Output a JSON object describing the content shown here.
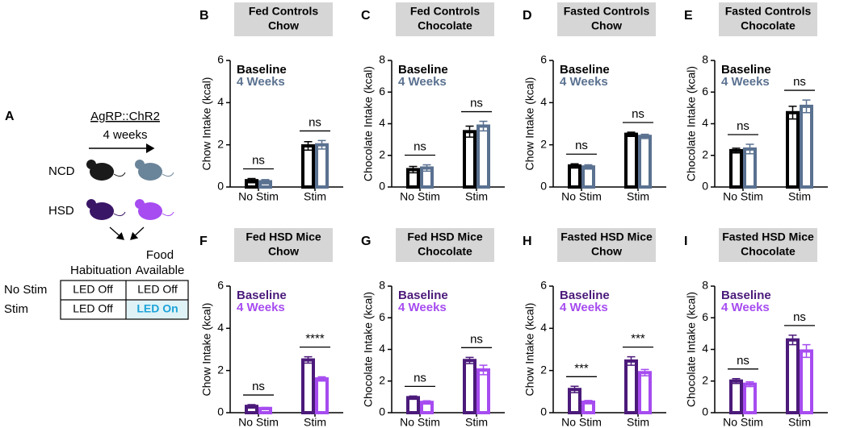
{
  "panel_a": {
    "label": "A",
    "strain": "AgRP::ChR2",
    "duration": "4 weeks",
    "groups": [
      "NCD",
      "HSD"
    ],
    "columns": [
      [
        "Habituation"
      ],
      [
        "Food",
        "Available"
      ]
    ],
    "rows": [
      {
        "label": "No Stim",
        "cells": [
          "LED Off",
          "LED Off"
        ]
      },
      {
        "label": "Stim",
        "cells": [
          "LED Off",
          "LED On"
        ]
      }
    ]
  },
  "chart_data": [
    {
      "type": "bar",
      "panel": "B",
      "title": [
        "Fed Controls",
        "Chow"
      ],
      "ylabel": "Chow Intake (kcal)",
      "categories": [
        "No Stim",
        "Stim"
      ],
      "ylim": [
        0,
        6
      ],
      "yticks": [
        0,
        2,
        4,
        6
      ],
      "series": [
        {
          "name": "Baseline",
          "color": "#000000",
          "values": [
            0.3,
            1.95
          ],
          "errors": [
            0.1,
            0.2
          ]
        },
        {
          "name": "4 Weeks",
          "color": "#5a7190",
          "values": [
            0.25,
            2.0
          ],
          "errors": [
            0.1,
            0.2
          ]
        }
      ],
      "annotations": [
        "ns",
        "ns"
      ]
    },
    {
      "type": "bar",
      "panel": "C",
      "title": [
        "Fed Controls",
        "Chocolate"
      ],
      "ylabel": "Chocolate Intake (kcal)",
      "categories": [
        "No Stim",
        "Stim"
      ],
      "ylim": [
        0,
        8
      ],
      "yticks": [
        0,
        2,
        4,
        6,
        8
      ],
      "series": [
        {
          "name": "Baseline",
          "color": "#000000",
          "values": [
            1.1,
            3.5
          ],
          "errors": [
            0.2,
            0.35
          ]
        },
        {
          "name": "4 Weeks",
          "color": "#5a7190",
          "values": [
            1.2,
            3.85
          ],
          "errors": [
            0.2,
            0.3
          ]
        }
      ],
      "annotations": [
        "ns",
        "ns"
      ]
    },
    {
      "type": "bar",
      "panel": "D",
      "title": [
        "Fasted Controls",
        "Chow"
      ],
      "ylabel": "Chow Intake (kcal)",
      "categories": [
        "No Stim",
        "Stim"
      ],
      "ylim": [
        0,
        6
      ],
      "yticks": [
        0,
        2,
        4,
        6
      ],
      "series": [
        {
          "name": "Baseline",
          "color": "#000000",
          "values": [
            1.0,
            2.5
          ],
          "errors": [
            0.1,
            0.1
          ]
        },
        {
          "name": "4 Weeks",
          "color": "#5a7190",
          "values": [
            0.95,
            2.4
          ],
          "errors": [
            0.1,
            0.1
          ]
        }
      ],
      "annotations": [
        "ns",
        "ns"
      ]
    },
    {
      "type": "bar",
      "panel": "E",
      "title": [
        "Fasted Controls",
        "Chocolate"
      ],
      "ylabel": "Chocolate Intake (kcal)",
      "categories": [
        "No Stim",
        "Stim"
      ],
      "ylim": [
        0,
        8
      ],
      "yticks": [
        0,
        2,
        4,
        6,
        8
      ],
      "series": [
        {
          "name": "Baseline",
          "color": "#000000",
          "values": [
            2.3,
            4.7
          ],
          "errors": [
            0.15,
            0.4
          ]
        },
        {
          "name": "4 Weeks",
          "color": "#5a7190",
          "values": [
            2.4,
            5.1
          ],
          "errors": [
            0.3,
            0.4
          ]
        }
      ],
      "annotations": [
        "ns",
        "ns"
      ]
    },
    {
      "type": "bar",
      "panel": "F",
      "title": [
        "Fed HSD Mice",
        "Chow"
      ],
      "ylabel": "Chow Intake (kcal)",
      "categories": [
        "No Stim",
        "Stim"
      ],
      "ylim": [
        0,
        6
      ],
      "yticks": [
        0,
        2,
        4,
        6
      ],
      "series": [
        {
          "name": "Baseline",
          "color": "#4b1a7a",
          "values": [
            0.3,
            2.5
          ],
          "errors": [
            0.08,
            0.15
          ]
        },
        {
          "name": "4 Weeks",
          "color": "#a64cf0",
          "values": [
            0.2,
            1.6
          ],
          "errors": [
            0.05,
            0.1
          ]
        }
      ],
      "annotations": [
        "ns",
        "****"
      ]
    },
    {
      "type": "bar",
      "panel": "G",
      "title": [
        "Fed HSD Mice",
        "Chocolate"
      ],
      "ylabel": "Chocolate Intake (kcal)",
      "categories": [
        "No Stim",
        "Stim"
      ],
      "ylim": [
        0,
        8
      ],
      "yticks": [
        0,
        2,
        4,
        6,
        8
      ],
      "series": [
        {
          "name": "Baseline",
          "color": "#4b1a7a",
          "values": [
            0.95,
            3.3
          ],
          "errors": [
            0.1,
            0.2
          ]
        },
        {
          "name": "4 Weeks",
          "color": "#a64cf0",
          "values": [
            0.65,
            2.7
          ],
          "errors": [
            0.1,
            0.3
          ]
        }
      ],
      "annotations": [
        "ns",
        "ns"
      ]
    },
    {
      "type": "bar",
      "panel": "H",
      "title": [
        "Fasted HSD Mice",
        "Chow"
      ],
      "ylabel": "Chow Intake (kcal)",
      "categories": [
        "No Stim",
        "Stim"
      ],
      "ylim": [
        0,
        6
      ],
      "yticks": [
        0,
        2,
        4,
        6
      ],
      "series": [
        {
          "name": "Baseline",
          "color": "#4b1a7a",
          "values": [
            1.1,
            2.45
          ],
          "errors": [
            0.15,
            0.2
          ]
        },
        {
          "name": "4 Weeks",
          "color": "#a64cf0",
          "values": [
            0.5,
            1.9
          ],
          "errors": [
            0.08,
            0.15
          ]
        }
      ],
      "annotations": [
        "***",
        "***"
      ]
    },
    {
      "type": "bar",
      "panel": "I",
      "title": [
        "Fasted HSD Mice",
        "Chocolate"
      ],
      "ylabel": "Chocolate Intake (kcal)",
      "categories": [
        "No Stim",
        "Stim"
      ],
      "ylim": [
        0,
        8
      ],
      "yticks": [
        0,
        2,
        4,
        6,
        8
      ],
      "series": [
        {
          "name": "Baseline",
          "color": "#4b1a7a",
          "values": [
            2.0,
            4.6
          ],
          "errors": [
            0.15,
            0.3
          ]
        },
        {
          "name": "4 Weeks",
          "color": "#a64cf0",
          "values": [
            1.8,
            3.9
          ],
          "errors": [
            0.15,
            0.4
          ]
        }
      ],
      "annotations": [
        "ns",
        "ns"
      ]
    }
  ]
}
